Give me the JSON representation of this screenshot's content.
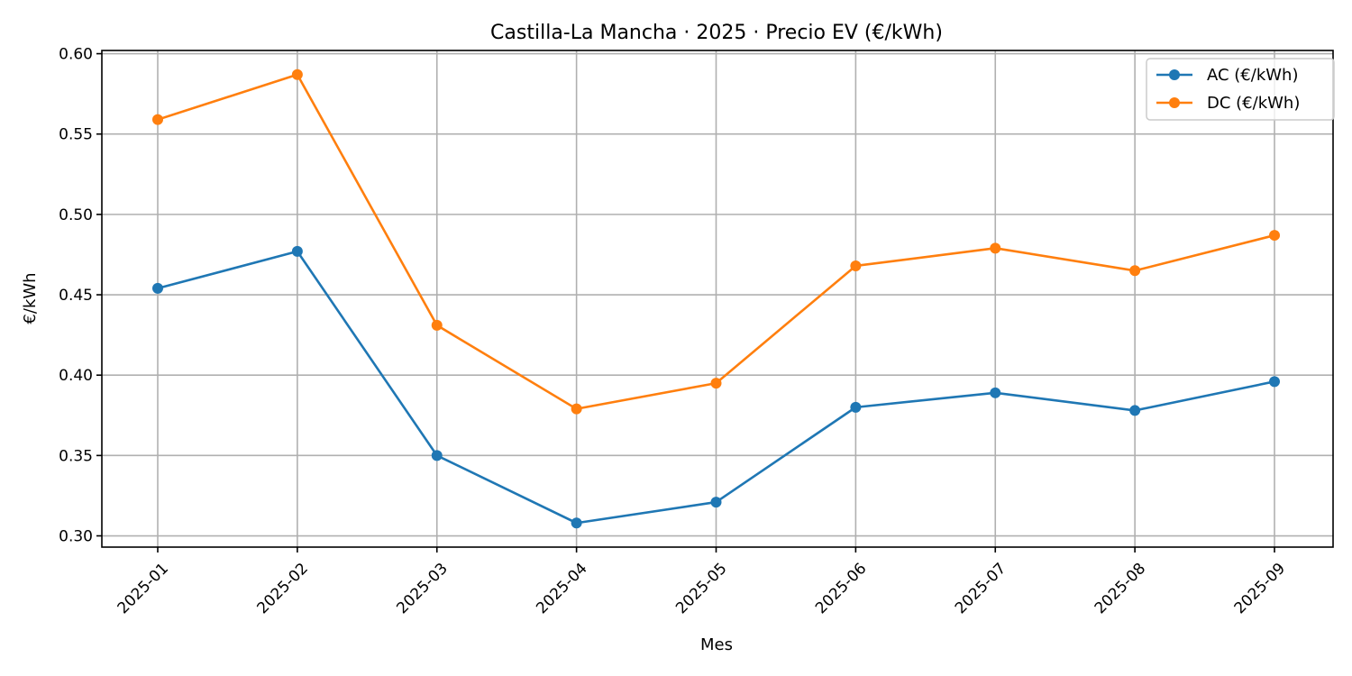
{
  "chart_data": {
    "type": "line",
    "title": "Castilla-La Mancha · 2025 · Precio EV (€/kWh)",
    "xlabel": "Mes",
    "ylabel": "€/kWh",
    "categories": [
      "2025-01",
      "2025-02",
      "2025-03",
      "2025-04",
      "2025-05",
      "2025-06",
      "2025-07",
      "2025-08",
      "2025-09"
    ],
    "ylim": [
      0.293,
      0.602
    ],
    "yticks": [
      0.3,
      0.35,
      0.4,
      0.45,
      0.5,
      0.55,
      0.6
    ],
    "ytick_labels": [
      "0.30",
      "0.35",
      "0.40",
      "0.45",
      "0.50",
      "0.55",
      "0.60"
    ],
    "grid": true,
    "legend_position": "top-right",
    "series": [
      {
        "name": "AC (€/kWh)",
        "color": "#1f77b4",
        "marker": "circle",
        "values": [
          0.454,
          0.477,
          0.35,
          0.308,
          0.321,
          0.38,
          0.389,
          0.378,
          0.396
        ]
      },
      {
        "name": "DC (€/kWh)",
        "color": "#ff7f0e",
        "marker": "circle",
        "values": [
          0.559,
          0.587,
          0.431,
          0.379,
          0.395,
          0.468,
          0.479,
          0.465,
          0.487
        ]
      }
    ]
  }
}
